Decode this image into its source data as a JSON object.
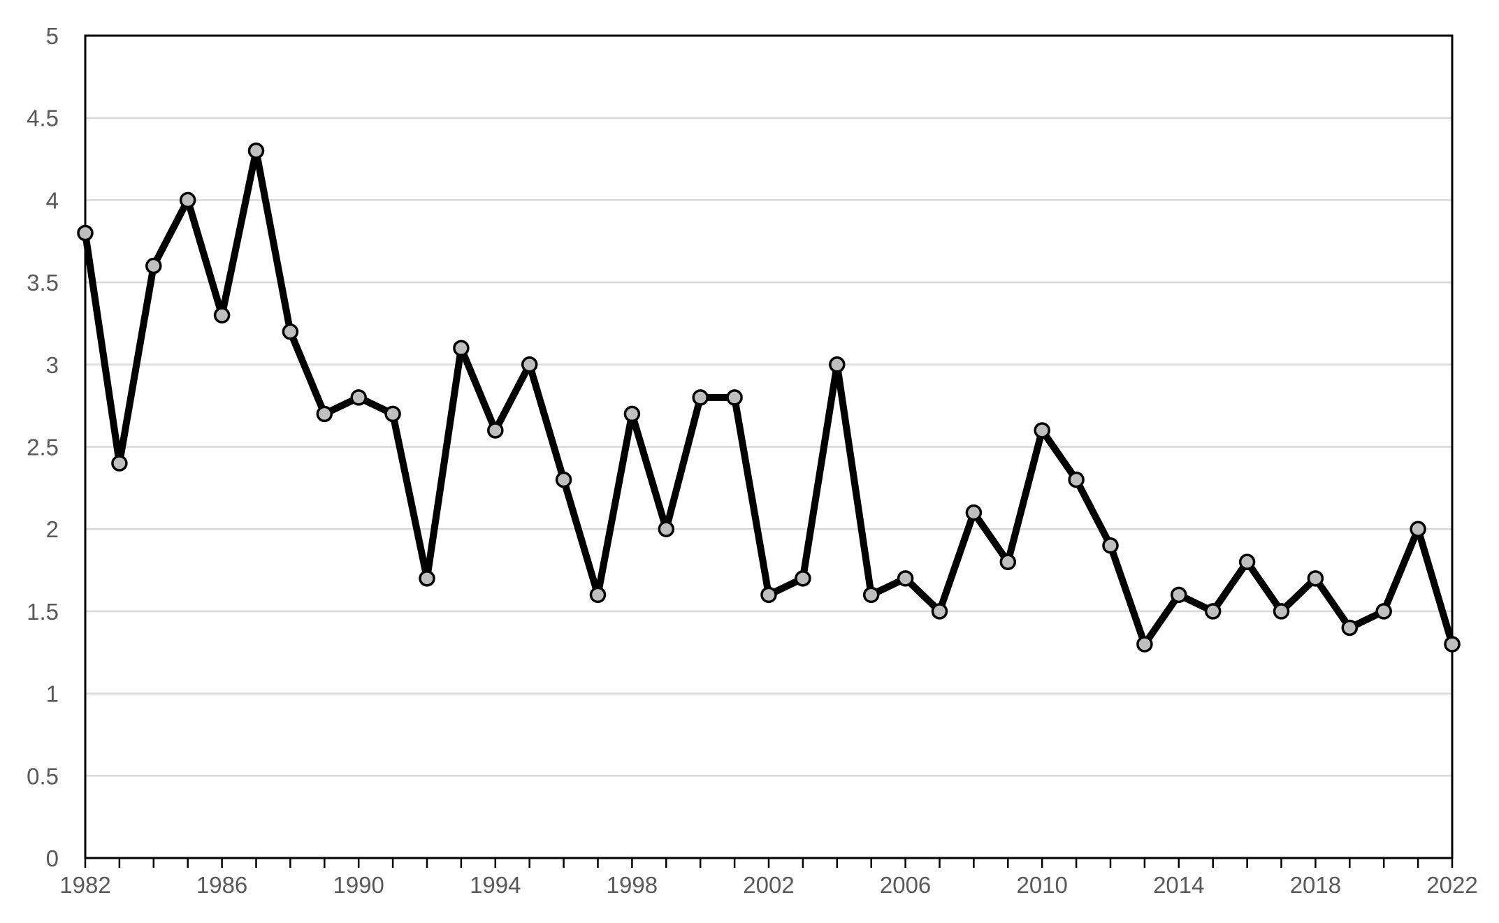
{
  "chart_data": {
    "type": "line",
    "title": "",
    "xlabel": "",
    "ylabel": "",
    "xlim": [
      1982,
      2022
    ],
    "ylim": [
      0,
      5
    ],
    "y_ticks": [
      "0",
      "0.5",
      "1",
      "1.5",
      "2",
      "2.5",
      "3",
      "3.5",
      "4",
      "4.5",
      "5"
    ],
    "x_tick_labels": [
      "1982",
      "1986",
      "1990",
      "1994",
      "1998",
      "2002",
      "2006",
      "2010",
      "2014",
      "2018",
      "2022"
    ],
    "grid": "horizontal",
    "legend": "none",
    "line_color": "#000000",
    "marker_fill": "#bfbfbf",
    "x": [
      1982,
      1983,
      1984,
      1985,
      1986,
      1987,
      1988,
      1989,
      1990,
      1991,
      1992,
      1993,
      1994,
      1995,
      1996,
      1997,
      1998,
      1999,
      2000,
      2001,
      2002,
      2003,
      2004,
      2005,
      2006,
      2007,
      2008,
      2009,
      2010,
      2011,
      2012,
      2013,
      2014,
      2015,
      2016,
      2017,
      2018,
      2019,
      2020,
      2021,
      2022
    ],
    "series": [
      {
        "values": [
          3.8,
          2.4,
          3.6,
          4.0,
          3.3,
          4.3,
          3.2,
          2.7,
          2.8,
          2.7,
          1.7,
          3.1,
          2.6,
          3.0,
          2.3,
          1.6,
          2.7,
          2.0,
          2.8,
          2.8,
          1.6,
          1.7,
          3.0,
          1.6,
          1.7,
          1.5,
          2.1,
          1.8,
          2.6,
          2.3,
          1.9,
          1.3,
          1.6,
          1.5,
          1.8,
          1.5,
          1.7,
          1.4,
          1.5,
          2.0,
          1.3
        ]
      }
    ]
  }
}
